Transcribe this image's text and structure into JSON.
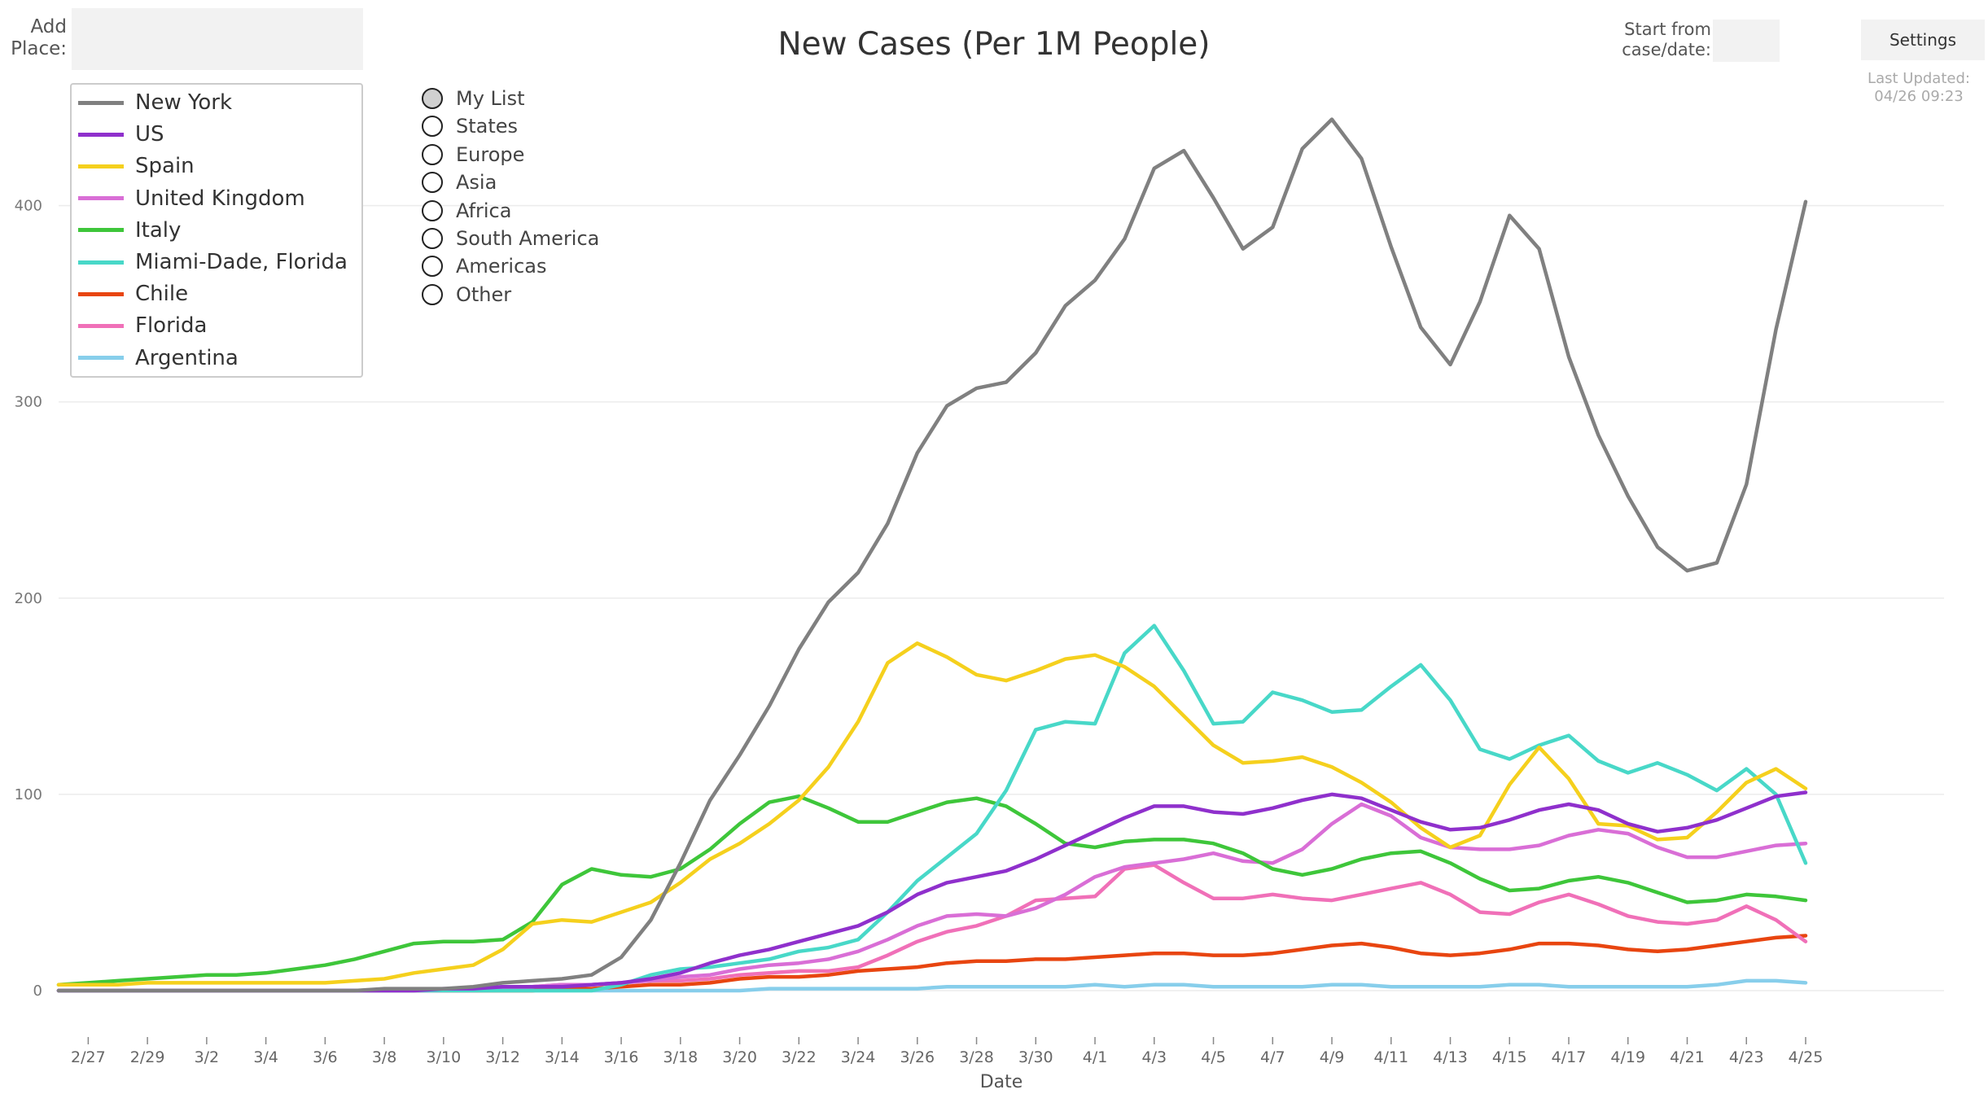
{
  "controls": {
    "add_place_label_line1": "Add",
    "add_place_label_line2": "Place:",
    "start_label_line1": "Start from",
    "start_label_line2": "case/date:",
    "settings_label": "Settings",
    "last_updated_line1": "Last Updated:",
    "last_updated_line2": "04/26 09:23"
  },
  "region_options": [
    {
      "label": "My List",
      "selected": true
    },
    {
      "label": "States",
      "selected": false
    },
    {
      "label": "Europe",
      "selected": false
    },
    {
      "label": "Asia",
      "selected": false
    },
    {
      "label": "Africa",
      "selected": false
    },
    {
      "label": "South America",
      "selected": false
    },
    {
      "label": "Americas",
      "selected": false
    },
    {
      "label": "Other",
      "selected": false
    }
  ],
  "chart_data": {
    "type": "line",
    "title": "New Cases (Per 1M People)",
    "xlabel": "Date",
    "ylabel": "",
    "ylim": [
      0,
      460
    ],
    "yticks": [
      0,
      100,
      200,
      300,
      400
    ],
    "grid": "horizontal",
    "legend_position": "top-left",
    "x": [
      "2/26",
      "2/27",
      "2/28",
      "2/29",
      "3/1",
      "3/2",
      "3/3",
      "3/4",
      "3/5",
      "3/6",
      "3/7",
      "3/8",
      "3/9",
      "3/10",
      "3/11",
      "3/12",
      "3/13",
      "3/14",
      "3/15",
      "3/16",
      "3/17",
      "3/18",
      "3/19",
      "3/20",
      "3/21",
      "3/22",
      "3/23",
      "3/24",
      "3/25",
      "3/26",
      "3/27",
      "3/28",
      "3/29",
      "3/30",
      "3/31",
      "4/1",
      "4/2",
      "4/3",
      "4/4",
      "4/5",
      "4/6",
      "4/7",
      "4/8",
      "4/9",
      "4/10",
      "4/11",
      "4/12",
      "4/13",
      "4/14",
      "4/15",
      "4/16",
      "4/17",
      "4/18",
      "4/19",
      "4/20",
      "4/21",
      "4/22",
      "4/23",
      "4/24",
      "4/25"
    ],
    "xticks": [
      "2/27",
      "2/29",
      "3/2",
      "3/4",
      "3/6",
      "3/8",
      "3/10",
      "3/12",
      "3/14",
      "3/16",
      "3/18",
      "3/20",
      "3/22",
      "3/24",
      "3/26",
      "3/28",
      "3/30",
      "4/1",
      "4/3",
      "4/5",
      "4/7",
      "4/9",
      "4/11",
      "4/13",
      "4/15",
      "4/17",
      "4/19",
      "4/21",
      "4/23",
      "4/25"
    ],
    "series": [
      {
        "name": "New York",
        "color": "#808080",
        "values": [
          0,
          0,
          0,
          0,
          0,
          0,
          0,
          0,
          0,
          0,
          0,
          1,
          1,
          1,
          2,
          4,
          5,
          6,
          8,
          17,
          36,
          65,
          97,
          120,
          145,
          174,
          198,
          213,
          238,
          274,
          298,
          307,
          310,
          325,
          349,
          362,
          383,
          419,
          428,
          404,
          378,
          389,
          429,
          444,
          424,
          379,
          338,
          319,
          351,
          395,
          378,
          323,
          283,
          252,
          226,
          214,
          218,
          258,
          337,
          402
        ]
      },
      {
        "name": "US",
        "color": "#8f30cc",
        "values": [
          0,
          0,
          0,
          0,
          0,
          0,
          0,
          0,
          0,
          0,
          0,
          0,
          0,
          1,
          1,
          2,
          2,
          2,
          3,
          4,
          6,
          9,
          14,
          18,
          21,
          25,
          29,
          33,
          40,
          49,
          55,
          58,
          61,
          67,
          74,
          81,
          88,
          94,
          94,
          91,
          90,
          93,
          97,
          100,
          98,
          92,
          86,
          82,
          83,
          87,
          92,
          95,
          92,
          85,
          81,
          83,
          87,
          93,
          99,
          101
        ]
      },
      {
        "name": "Spain",
        "color": "#f5d01d",
        "values": [
          3,
          3,
          3,
          4,
          4,
          4,
          4,
          4,
          4,
          4,
          5,
          6,
          9,
          11,
          13,
          21,
          34,
          36,
          35,
          40,
          45,
          55,
          67,
          75,
          85,
          97,
          114,
          137,
          167,
          177,
          170,
          161,
          158,
          163,
          169,
          171,
          165,
          155,
          140,
          125,
          116,
          117,
          119,
          114,
          106,
          96,
          83,
          73,
          79,
          105,
          124,
          108,
          85,
          84,
          77,
          78,
          91,
          106,
          113,
          103
        ]
      },
      {
        "name": "United Kingdom",
        "color": "#d96ed6",
        "values": [
          0,
          0,
          0,
          0,
          0,
          0,
          0,
          0,
          0,
          0,
          0,
          0,
          0,
          0,
          1,
          2,
          2,
          3,
          3,
          4,
          5,
          7,
          8,
          11,
          13,
          14,
          16,
          20,
          26,
          33,
          38,
          39,
          38,
          42,
          49,
          58,
          63,
          65,
          67,
          70,
          66,
          65,
          72,
          85,
          95,
          89,
          78,
          73,
          72,
          72,
          74,
          79,
          82,
          80,
          73,
          68,
          68,
          71,
          74,
          75
        ]
      },
      {
        "name": "Italy",
        "color": "#3ec63a",
        "values": [
          3,
          4,
          5,
          6,
          7,
          8,
          8,
          9,
          11,
          13,
          16,
          20,
          24,
          25,
          25,
          26,
          35,
          54,
          62,
          59,
          58,
          62,
          72,
          85,
          96,
          99,
          93,
          86,
          86,
          91,
          96,
          98,
          94,
          85,
          75,
          73,
          76,
          77,
          77,
          75,
          70,
          62,
          59,
          62,
          67,
          70,
          71,
          65,
          57,
          51,
          52,
          56,
          58,
          55,
          50,
          45,
          46,
          49,
          48,
          46
        ]
      },
      {
        "name": "Miami-Dade, Florida",
        "color": "#48d8c8",
        "values": [
          0,
          0,
          0,
          0,
          0,
          0,
          0,
          0,
          0,
          0,
          0,
          0,
          0,
          0,
          0,
          0,
          0,
          0,
          0,
          3,
          8,
          11,
          12,
          14,
          16,
          20,
          22,
          26,
          40,
          56,
          68,
          80,
          102,
          133,
          137,
          136,
          172,
          186,
          163,
          136,
          137,
          152,
          148,
          142,
          143,
          155,
          166,
          148,
          123,
          118,
          125,
          130,
          117,
          111,
          116,
          110,
          102,
          113,
          100,
          65
        ]
      },
      {
        "name": "Chile",
        "color": "#e84510",
        "values": [
          0,
          0,
          0,
          0,
          0,
          0,
          0,
          0,
          0,
          0,
          0,
          0,
          0,
          0,
          0,
          0,
          0,
          1,
          1,
          2,
          3,
          3,
          4,
          6,
          7,
          7,
          8,
          10,
          11,
          12,
          14,
          15,
          15,
          16,
          16,
          17,
          18,
          19,
          19,
          18,
          18,
          19,
          21,
          23,
          24,
          22,
          19,
          18,
          19,
          21,
          24,
          24,
          23,
          21,
          20,
          21,
          23,
          25,
          27,
          28
        ]
      },
      {
        "name": "Florida",
        "color": "#f070b8",
        "values": [
          0,
          0,
          0,
          0,
          0,
          0,
          0,
          0,
          0,
          0,
          0,
          0,
          0,
          0,
          0,
          1,
          2,
          3,
          3,
          4,
          5,
          5,
          6,
          8,
          9,
          10,
          10,
          12,
          18,
          25,
          30,
          33,
          38,
          46,
          47,
          48,
          62,
          64,
          55,
          47,
          47,
          49,
          47,
          46,
          49,
          52,
          55,
          49,
          40,
          39,
          45,
          49,
          44,
          38,
          35,
          34,
          36,
          43,
          36,
          25
        ]
      },
      {
        "name": "Argentina",
        "color": "#87ceeb",
        "values": [
          0,
          0,
          0,
          0,
          0,
          0,
          0,
          0,
          0,
          0,
          0,
          0,
          0,
          0,
          0,
          0,
          0,
          0,
          0,
          0,
          0,
          0,
          0,
          0,
          1,
          1,
          1,
          1,
          1,
          1,
          2,
          2,
          2,
          2,
          2,
          3,
          2,
          3,
          3,
          2,
          2,
          2,
          2,
          3,
          3,
          2,
          2,
          2,
          2,
          3,
          3,
          2,
          2,
          2,
          2,
          2,
          3,
          5,
          5,
          4
        ]
      }
    ]
  }
}
